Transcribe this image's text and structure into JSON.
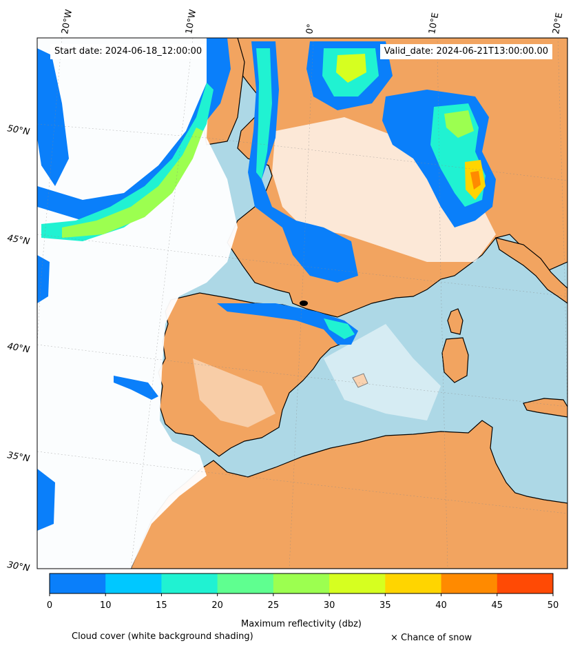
{
  "header": {
    "start_label": "Start date: 2024-06-18_12:00:00",
    "valid_label": "Valid_date: 2024-06-21T13:00:00.00"
  },
  "map": {
    "lon_labels": [
      "20°W",
      "10°W",
      "0°",
      "10°E",
      "20°E"
    ],
    "lat_labels": [
      "50°N",
      "45°N",
      "40°N",
      "35°N",
      "30°N"
    ],
    "colors": {
      "land": "#f2a460",
      "sea": "#add8e6",
      "cloud": "#ffffff",
      "coastline": "#000000"
    }
  },
  "colorbar": {
    "ticks": [
      "0",
      "10",
      "15",
      "20",
      "25",
      "30",
      "35",
      "40",
      "45",
      "50"
    ],
    "colors": [
      "#0a7ffa",
      "#00c8ff",
      "#20f2d2",
      "#5fff90",
      "#9cff50",
      "#d6ff20",
      "#ffd500",
      "#ff8a00",
      "#ff4a05"
    ],
    "label": "Maximum reflectivity (dbz)"
  },
  "captions": {
    "cloud": "Cloud cover (white background shading)",
    "snow": "× Chance of snow"
  }
}
